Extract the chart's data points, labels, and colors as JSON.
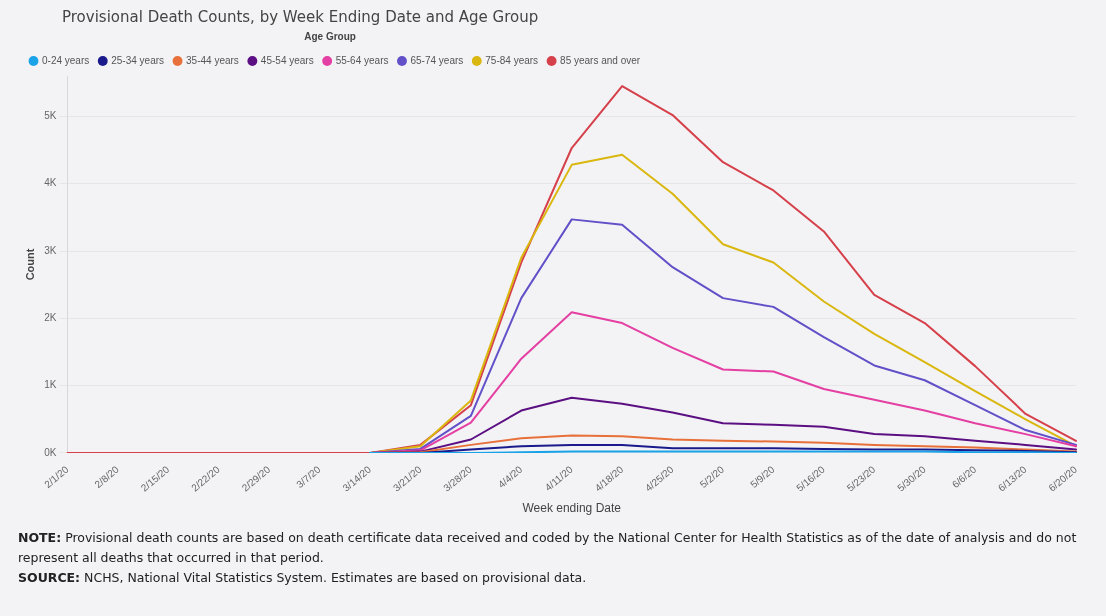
{
  "chart_data": {
    "type": "line",
    "title": "Provisional Death Counts, by Week Ending Date and Age Group",
    "xlabel": "Week ending Date",
    "ylabel": "Count",
    "legend_title": "Age Group",
    "legend": "top left",
    "grid": "y",
    "marker": "none",
    "line_style": "solid",
    "categories": [
      "2/1/20",
      "2/8/20",
      "2/15/20",
      "2/22/20",
      "2/29/20",
      "3/7/20",
      "3/14/20",
      "3/21/20",
      "3/28/20",
      "4/4/20",
      "4/11/20",
      "4/18/20",
      "4/25/20",
      "5/2/20",
      "5/9/20",
      "5/16/20",
      "5/23/20",
      "5/30/20",
      "6/6/20",
      "6/13/20",
      "6/20/20"
    ],
    "ylim": [
      0,
      5600
    ],
    "yticks": [
      {
        "value": 0,
        "label": "0K"
      },
      {
        "value": 1000,
        "label": "1K"
      },
      {
        "value": 2000,
        "label": "2K"
      },
      {
        "value": 3000,
        "label": "3K"
      },
      {
        "value": 4000,
        "label": "4K"
      },
      {
        "value": 5000,
        "label": "5K"
      }
    ],
    "series": [
      {
        "name": "0-24 years",
        "color": "#1aa3e8",
        "values": [
          null,
          null,
          null,
          null,
          null,
          null,
          0,
          0,
          0,
          10,
          20,
          20,
          20,
          20,
          20,
          20,
          20,
          20,
          10,
          10,
          0
        ]
      },
      {
        "name": "25-34 years",
        "color": "#1a1a8c",
        "values": [
          null,
          null,
          null,
          null,
          null,
          null,
          0,
          0,
          50,
          100,
          120,
          120,
          70,
          70,
          70,
          60,
          50,
          50,
          40,
          30,
          10
        ]
      },
      {
        "name": "35-44 years",
        "color": "#e8703a",
        "values": [
          null,
          null,
          null,
          null,
          null,
          null,
          0,
          10,
          120,
          220,
          260,
          250,
          200,
          180,
          170,
          150,
          120,
          100,
          80,
          50,
          20
        ]
      },
      {
        "name": "45-54 years",
        "color": "#5b0f82",
        "values": [
          null,
          null,
          null,
          null,
          null,
          null,
          0,
          20,
          200,
          630,
          820,
          730,
          600,
          440,
          420,
          390,
          280,
          250,
          180,
          120,
          50
        ]
      },
      {
        "name": "55-64 years",
        "color": "#e43fa3",
        "values": [
          null,
          null,
          null,
          null,
          null,
          null,
          0,
          40,
          450,
          1400,
          2090,
          1930,
          1560,
          1240,
          1210,
          950,
          790,
          630,
          440,
          280,
          100
        ]
      },
      {
        "name": "65-74 years",
        "color": "#6150c8",
        "values": [
          null,
          null,
          null,
          null,
          null,
          null,
          0,
          60,
          550,
          2300,
          3470,
          3390,
          2760,
          2300,
          2170,
          1720,
          1300,
          1080,
          710,
          340,
          120
        ]
      },
      {
        "name": "75-84 years",
        "color": "#dab70f",
        "values": [
          null,
          null,
          null,
          null,
          null,
          null,
          0,
          100,
          780,
          2900,
          4280,
          4430,
          3850,
          3100,
          2830,
          2250,
          1770,
          1350,
          920,
          500,
          100
        ]
      },
      {
        "name": "85 years and over",
        "color": "#d6404a",
        "values": [
          0,
          0,
          0,
          0,
          0,
          0,
          0,
          120,
          710,
          2830,
          4530,
          5450,
          5020,
          4320,
          3900,
          3290,
          2350,
          1930,
          1290,
          580,
          180
        ]
      }
    ],
    "annotations": [
      "NOTE: Provisional death counts are based on death certificate data received and coded by the National Center for Health Statistics as of the date of analysis and do not represent all deaths that occurred in that period.",
      "SOURCE: NCHS, National Vital Statistics System. Estimates are based on provisional data."
    ]
  }
}
